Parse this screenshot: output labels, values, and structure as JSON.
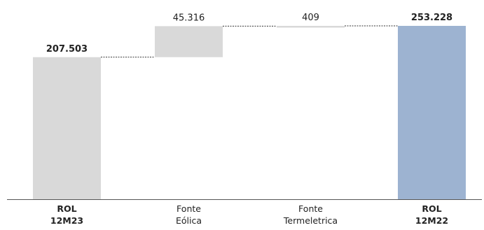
{
  "chart_data": {
    "type": "bar",
    "subtype": "waterfall",
    "categories": [
      {
        "lines": [
          "ROL",
          "12M23"
        ],
        "bold": true
      },
      {
        "lines": [
          "Fonte",
          "Eólica"
        ],
        "bold": false
      },
      {
        "lines": [
          "Fonte",
          "Termeletrica"
        ],
        "bold": false
      },
      {
        "lines": [
          "ROL",
          "12M22"
        ],
        "bold": true
      }
    ],
    "values": [
      207503,
      45316,
      409,
      253228
    ],
    "labels": [
      "207.503",
      "45.316",
      "409",
      "253.228"
    ],
    "label_bold": [
      true,
      false,
      false,
      true
    ],
    "kinds": [
      "total",
      "delta",
      "delta",
      "total"
    ],
    "ylim": [
      0,
      253228
    ],
    "grid": false,
    "colors": {
      "start_total": "#d9d9d9",
      "delta": "#d9d9d9",
      "end_total": "#9db3d1",
      "connector": "#333333",
      "axis": "#555555"
    }
  }
}
